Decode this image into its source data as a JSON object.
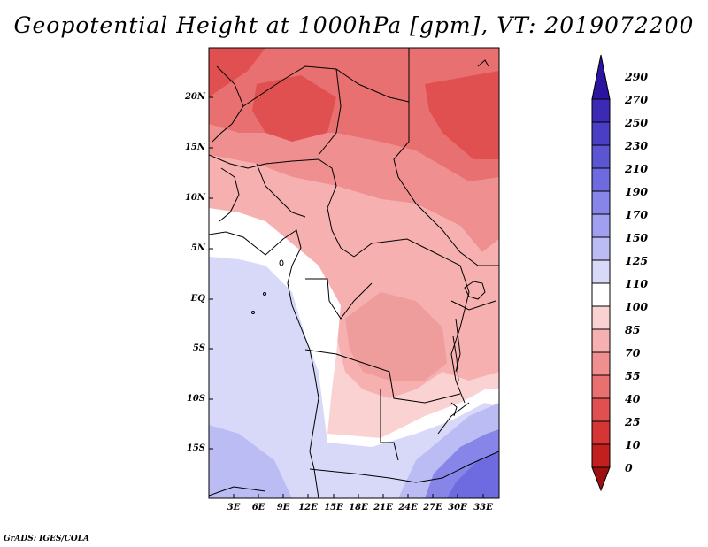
{
  "title": "Geopotential Height at 1000hPa [gpm], VT: 2019072200",
  "lat_labels": [
    "20N",
    "15N",
    "10N",
    "5N",
    "EQ",
    "5S",
    "10S",
    "15S"
  ],
  "lon_labels": [
    "3E",
    "6E",
    "9E",
    "12E",
    "15E",
    "18E",
    "21E",
    "24E",
    "27E",
    "30E",
    "33E"
  ],
  "colorbar_labels": [
    "290",
    "270",
    "250",
    "230",
    "210",
    "190",
    "170",
    "150",
    "125",
    "110",
    "100",
    "85",
    "70",
    "55",
    "40",
    "25",
    "10",
    "0"
  ],
  "colorbar_colors": [
    "#2b14a0",
    "#3a2ab4",
    "#4a3ec4",
    "#5b55d2",
    "#6d6bdf",
    "#8785e8",
    "#a19ff0",
    "#bcbcf4",
    "#d8d9f8",
    "#ffffff",
    "#fbd2d2",
    "#f6b0b0",
    "#ef8f8f",
    "#e87070",
    "#e05050",
    "#d53535",
    "#c41f1f",
    "#9c1010"
  ],
  "credit": "GrADS: IGES/COLA"
}
